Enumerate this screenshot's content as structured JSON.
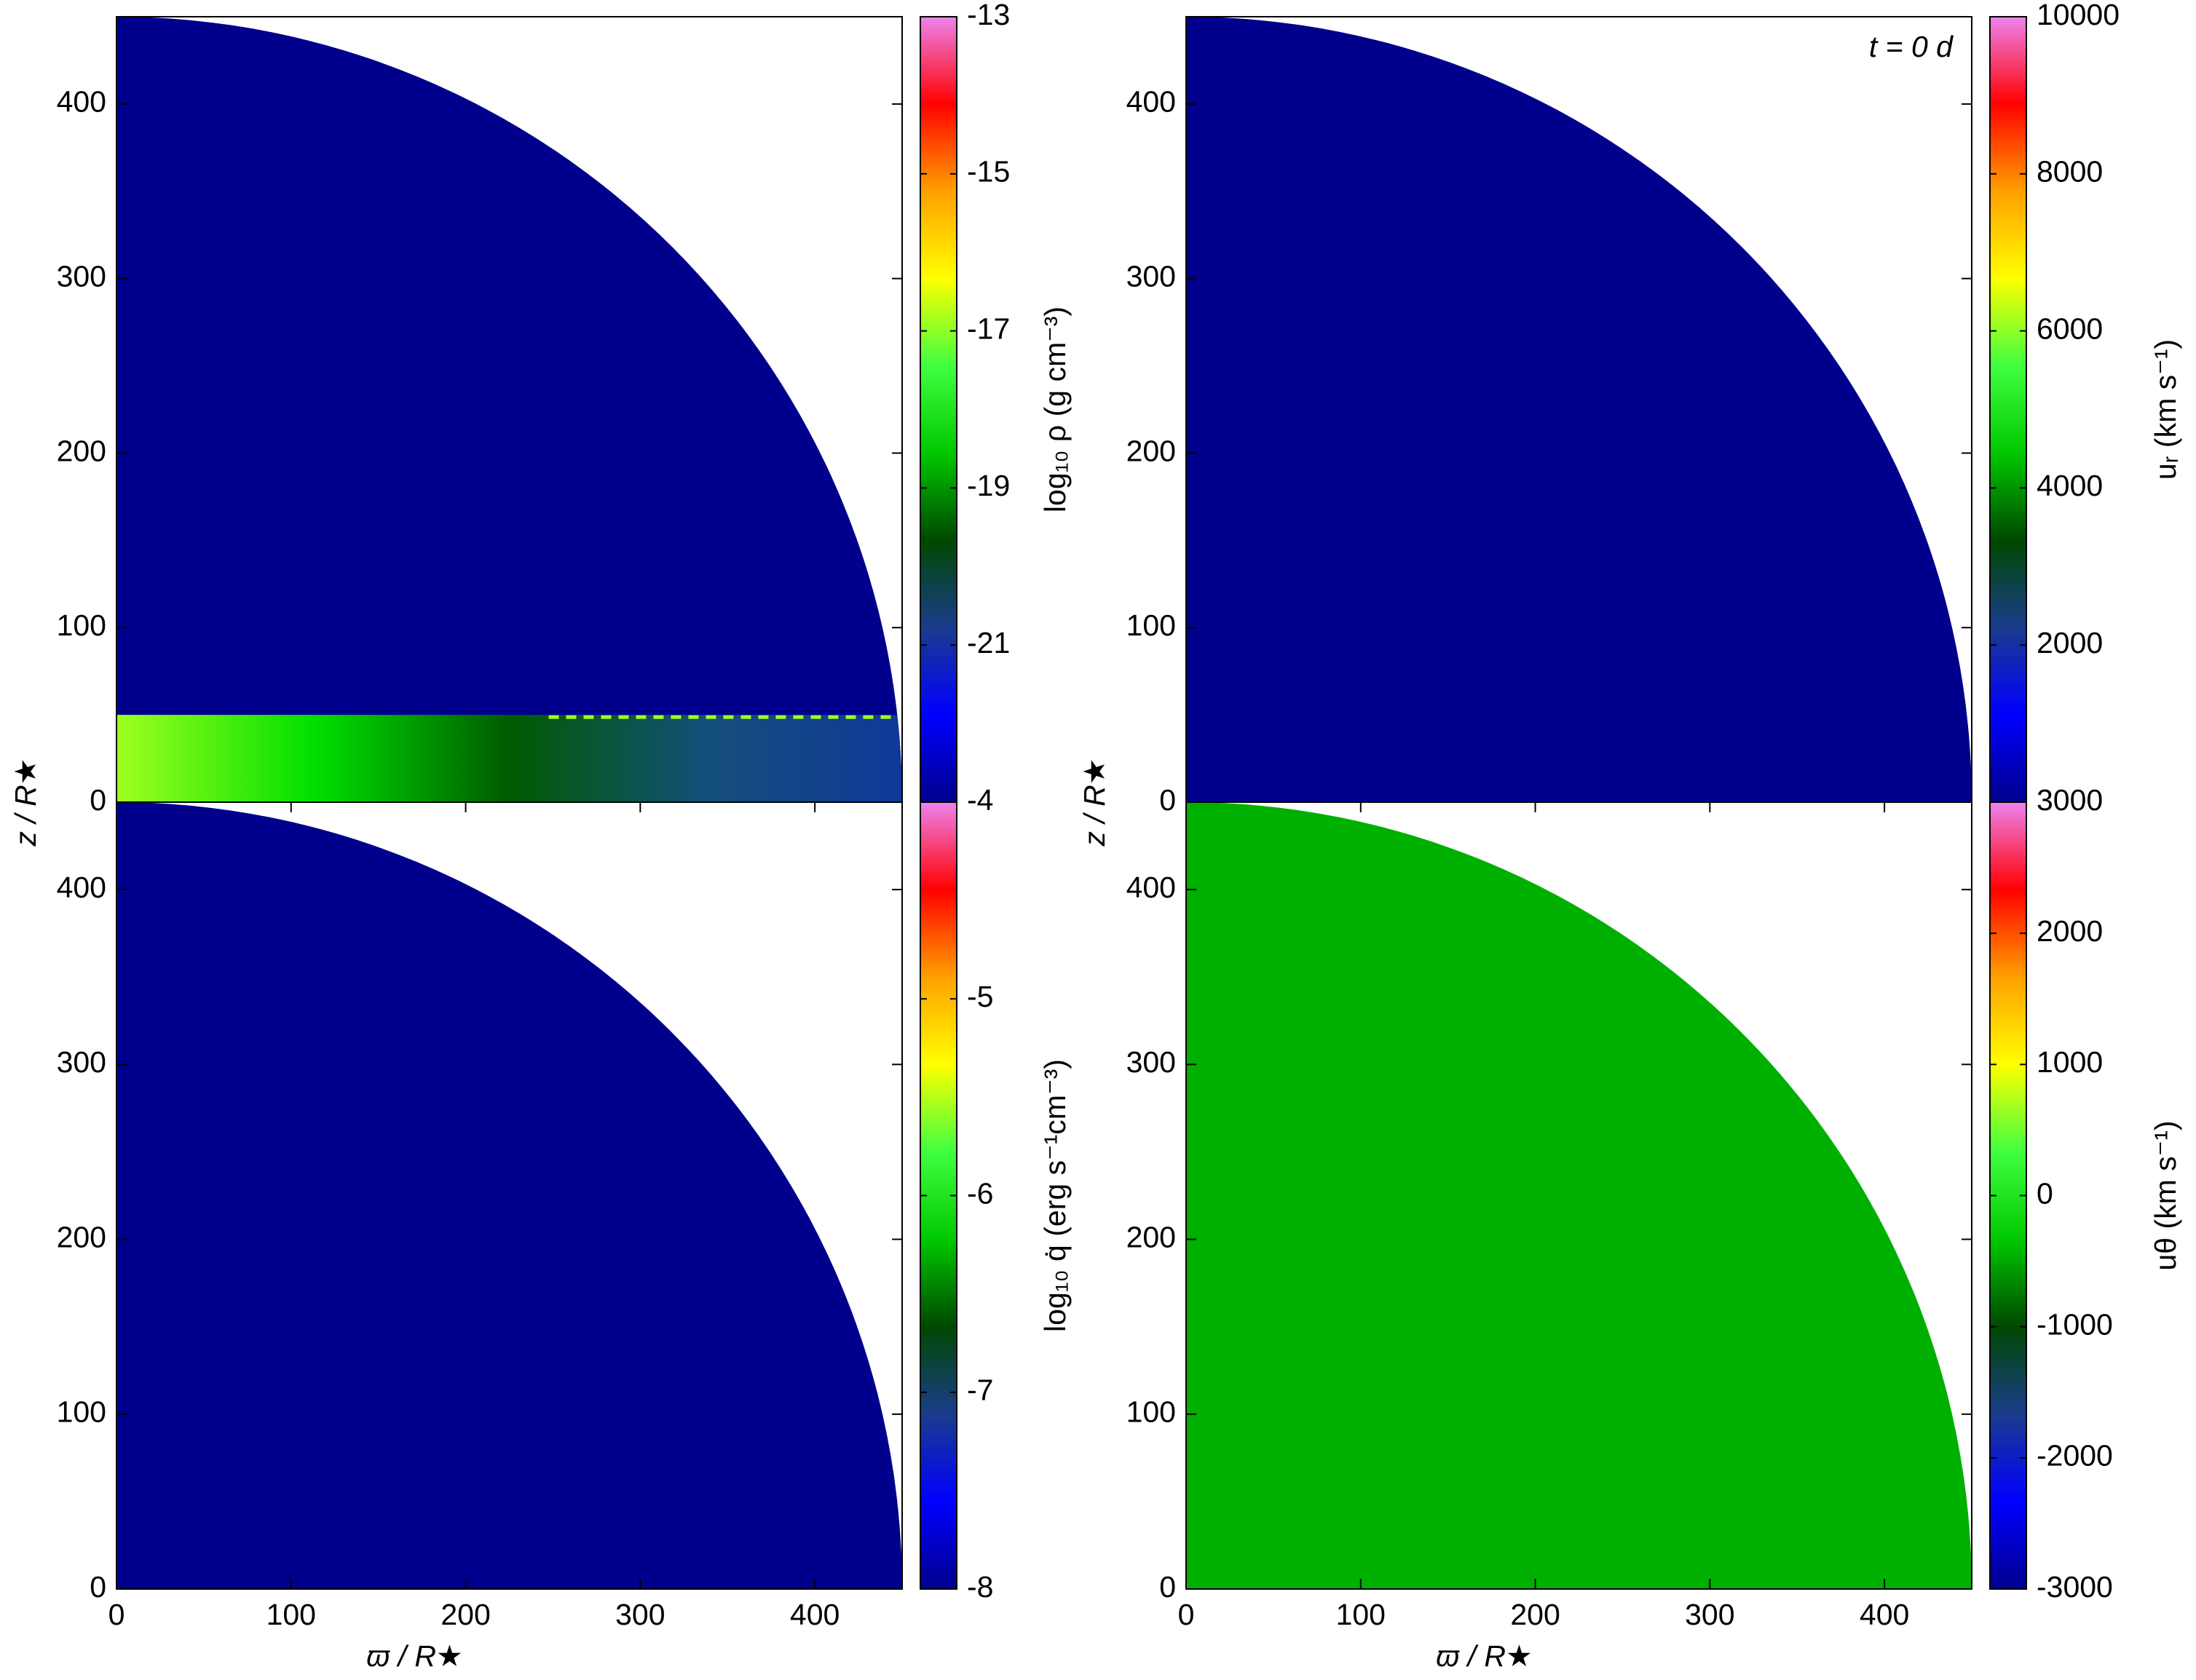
{
  "chart_data": [
    {
      "type": "map",
      "ylabel": "z / R★",
      "xlim": [
        0,
        450
      ],
      "ylim": [
        0,
        450
      ],
      "yticks": [
        0,
        100,
        200,
        300,
        400
      ],
      "fill_color": "#00008c",
      "disk": {
        "height": 50,
        "colors": [
          "#a0ff20",
          "#00e000",
          "#005a00",
          "#14507a",
          "#10389a"
        ]
      },
      "colorbar": {
        "label": "log₁₀ ρ (g cm⁻³)",
        "lim": [
          -23,
          -13
        ],
        "ticks": [
          -21,
          -19,
          -17,
          -15,
          -13
        ]
      }
    },
    {
      "type": "map",
      "annotation": "t = 0 d",
      "ylabel": "z / R★",
      "xlim": [
        0,
        450
      ],
      "ylim": [
        0,
        450
      ],
      "yticks": [
        0,
        100,
        200,
        300,
        400
      ],
      "fill_color": "#00008c",
      "colorbar": {
        "label": "uᵣ (km s⁻¹)",
        "lim": [
          0,
          10000
        ],
        "ticks": [
          2000,
          4000,
          6000,
          8000,
          10000
        ]
      }
    },
    {
      "type": "map",
      "xlabel": "ϖ / R★",
      "xlim": [
        0,
        450
      ],
      "ylim": [
        0,
        450
      ],
      "xticks": [
        0,
        100,
        200,
        300,
        400
      ],
      "yticks": [
        0,
        100,
        200,
        300,
        400
      ],
      "fill_color": "#00008c",
      "colorbar": {
        "label": "log₁₀ q̇ (erg s⁻¹cm⁻³)",
        "lim": [
          -8,
          -4
        ],
        "ticks": [
          -8,
          -7,
          -6,
          -5,
          -4
        ]
      }
    },
    {
      "type": "map",
      "xlabel": "ϖ / R★",
      "xlim": [
        0,
        450
      ],
      "ylim": [
        0,
        450
      ],
      "xticks": [
        0,
        100,
        200,
        300,
        400
      ],
      "yticks": [
        0,
        100,
        200,
        300,
        400
      ],
      "fill_color": "#00b000",
      "colorbar": {
        "label": "uθ (km s⁻¹)",
        "lim": [
          -3000,
          3000
        ],
        "ticks": [
          -3000,
          -2000,
          -1000,
          0,
          1000,
          2000,
          3000
        ]
      }
    }
  ],
  "colormap": [
    "#00008c",
    "#0000ff",
    "#1a3c8c",
    "#004800",
    "#00c800",
    "#40ff40",
    "#ffff00",
    "#ffa000",
    "#ff0000",
    "#ee82ee"
  ]
}
